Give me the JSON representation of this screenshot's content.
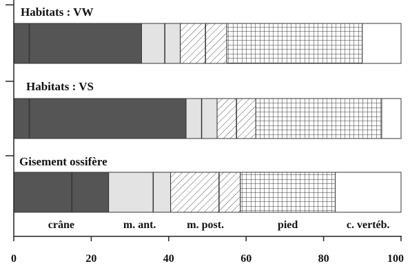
{
  "chart_data": {
    "type": "bar",
    "stacked": true,
    "orientation": "horizontal",
    "xlim": [
      0,
      100
    ],
    "x_ticks": [
      "0",
      "20",
      "40",
      "60",
      "80",
      "100"
    ],
    "categories": [
      "Habitats : VW",
      "Habitats : VS",
      "Gisement ossifère"
    ],
    "series": [
      {
        "name": "crâne",
        "pattern": "solid-dark",
        "color": "#555555",
        "values": [
          33,
          44.5,
          24.5
        ]
      },
      {
        "name": "m. ant.",
        "pattern": "light-gray",
        "color": "#e3e3e3",
        "values": [
          10,
          8,
          16
        ]
      },
      {
        "name": "m. post.",
        "pattern": "diagonal-hatch",
        "color": "#ffffff",
        "values": [
          12,
          10,
          18
        ]
      },
      {
        "name": "pied",
        "pattern": "grid",
        "color": "#ffffff",
        "values": [
          35,
          32.5,
          24.5
        ]
      },
      {
        "name": "c. vertéb.",
        "pattern": "empty",
        "color": "#ffffff",
        "values": [
          10,
          5,
          17
        ]
      }
    ],
    "inner_dividers": [
      [
        4,
        39,
        49.5
      ],
      [
        4,
        48.5,
        57.5
      ],
      [
        15,
        36,
        53
      ]
    ],
    "legend_position": "below-bars"
  }
}
